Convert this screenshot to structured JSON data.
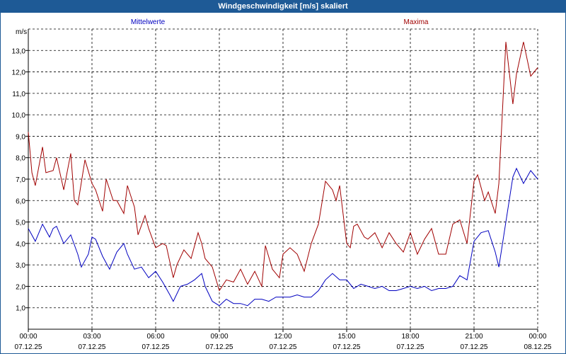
{
  "chart_data": {
    "type": "line",
    "title": "Windgeschwindigkeit [m/s] skaliert",
    "ylabel": "m/s",
    "xlabel": "",
    "ylim": [
      0,
      14
    ],
    "xlim": [
      0,
      24
    ],
    "grid": true,
    "yticks": [
      "1,0",
      "2,0",
      "3,0",
      "4,0",
      "5,0",
      "6,0",
      "7,0",
      "8,0",
      "9,0",
      "10,0",
      "11,0",
      "12,0",
      "13,0"
    ],
    "xticks": [
      {
        "time": "00:00",
        "date": "07.12.25"
      },
      {
        "time": "03:00",
        "date": "07.12.25"
      },
      {
        "time": "06:00",
        "date": "07.12.25"
      },
      {
        "time": "09:00",
        "date": "07.12.25"
      },
      {
        "time": "12:00",
        "date": "07.12.25"
      },
      {
        "time": "15:00",
        "date": "07.12.25"
      },
      {
        "time": "18:00",
        "date": "07.12.25"
      },
      {
        "time": "21:00",
        "date": "07.12.25"
      },
      {
        "time": "00:00",
        "date": "08.12.25"
      }
    ],
    "series": [
      {
        "name": "Mittelwerte",
        "color": "#0000c0",
        "x": [
          0,
          0.33,
          0.67,
          1.0,
          1.17,
          1.33,
          1.67,
          2.0,
          2.33,
          2.5,
          2.83,
          3.0,
          3.17,
          3.5,
          3.83,
          4.17,
          4.5,
          4.67,
          5.0,
          5.33,
          5.67,
          6.0,
          6.33,
          6.67,
          6.83,
          7.17,
          7.5,
          7.83,
          8.17,
          8.33,
          8.67,
          9.0,
          9.33,
          9.67,
          10.0,
          10.33,
          10.67,
          11.0,
          11.33,
          11.67,
          12.0,
          12.33,
          12.67,
          13.0,
          13.33,
          13.67,
          14.0,
          14.33,
          14.67,
          15.0,
          15.33,
          15.67,
          16.0,
          16.33,
          16.67,
          17.0,
          17.33,
          17.67,
          18.0,
          18.33,
          18.67,
          19.0,
          19.33,
          19.67,
          20.0,
          20.33,
          20.67,
          21.0,
          21.33,
          21.67,
          22.0,
          22.17,
          22.5,
          22.83,
          23.0,
          23.33,
          23.67,
          24.0
        ],
        "values": [
          4.7,
          4.1,
          4.9,
          4.3,
          4.7,
          4.8,
          4.0,
          4.4,
          3.5,
          2.9,
          3.5,
          4.3,
          4.2,
          3.4,
          2.8,
          3.6,
          4.0,
          3.5,
          2.8,
          2.9,
          2.4,
          2.7,
          2.2,
          1.6,
          1.3,
          2.0,
          2.1,
          2.3,
          2.6,
          2.0,
          1.3,
          1.1,
          1.4,
          1.2,
          1.2,
          1.1,
          1.4,
          1.4,
          1.3,
          1.5,
          1.5,
          1.5,
          1.6,
          1.5,
          1.5,
          1.8,
          2.3,
          2.6,
          2.3,
          2.3,
          1.9,
          2.1,
          2.0,
          1.9,
          2.0,
          1.8,
          1.8,
          1.9,
          2.0,
          1.9,
          2.0,
          1.8,
          1.9,
          1.9,
          2.0,
          2.5,
          2.3,
          4.1,
          4.5,
          4.6,
          3.6,
          2.9,
          5.0,
          7.1,
          7.5,
          6.8,
          7.4,
          7.0
        ]
      },
      {
        "name": "Maxima",
        "color": "#a00000",
        "x": [
          0,
          0.17,
          0.33,
          0.67,
          0.83,
          1.17,
          1.33,
          1.67,
          2.0,
          2.17,
          2.33,
          2.67,
          3.0,
          3.17,
          3.5,
          3.67,
          4.0,
          4.17,
          4.5,
          4.67,
          5.0,
          5.17,
          5.5,
          5.67,
          6.0,
          6.33,
          6.5,
          6.83,
          7.0,
          7.33,
          7.67,
          8.0,
          8.17,
          8.33,
          8.67,
          9.0,
          9.33,
          9.67,
          10.0,
          10.33,
          10.67,
          11.0,
          11.17,
          11.5,
          11.83,
          12.0,
          12.33,
          12.67,
          13.0,
          13.33,
          13.67,
          14.0,
          14.33,
          14.5,
          14.67,
          15.0,
          15.17,
          15.33,
          15.5,
          15.83,
          16.0,
          16.33,
          16.67,
          17.0,
          17.33,
          17.67,
          18.0,
          18.33,
          18.67,
          19.0,
          19.33,
          19.67,
          20.0,
          20.33,
          20.67,
          21.0,
          21.17,
          21.5,
          21.67,
          22.0,
          22.17,
          22.5,
          22.83,
          23.0,
          23.33,
          23.67,
          24.0
        ],
        "values": [
          9.2,
          7.3,
          6.7,
          8.5,
          7.3,
          7.4,
          8.0,
          6.5,
          8.2,
          6.0,
          5.8,
          7.9,
          6.8,
          6.5,
          5.5,
          7.0,
          6.0,
          6.0,
          5.4,
          6.7,
          5.7,
          4.4,
          5.3,
          4.7,
          3.8,
          4.0,
          3.9,
          2.4,
          3.0,
          3.7,
          3.3,
          4.5,
          4.0,
          3.3,
          2.9,
          1.8,
          2.3,
          2.2,
          2.8,
          2.1,
          2.7,
          2.0,
          3.9,
          2.8,
          2.4,
          3.5,
          3.8,
          3.5,
          2.7,
          4.0,
          4.9,
          6.9,
          6.5,
          6.0,
          6.7,
          4.0,
          3.8,
          4.8,
          4.9,
          4.3,
          4.2,
          4.5,
          3.8,
          4.5,
          4.0,
          3.6,
          4.5,
          3.5,
          4.2,
          4.7,
          3.5,
          3.5,
          4.9,
          5.1,
          4.0,
          6.9,
          7.2,
          6.0,
          6.4,
          5.4,
          6.8,
          13.4,
          10.5,
          11.9,
          13.4,
          11.8,
          12.2
        ]
      }
    ]
  }
}
